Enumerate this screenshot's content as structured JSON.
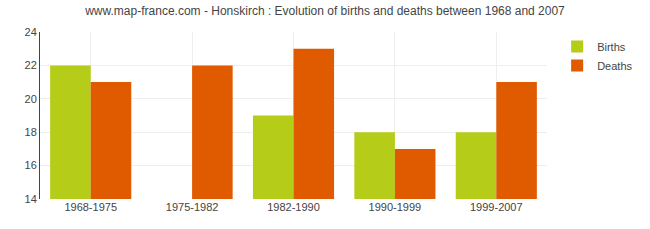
{
  "chart_data": {
    "type": "bar",
    "title": "www.map-france.com - Honskirch : Evolution of births and deaths between 1968 and 2007",
    "categories": [
      "1968-1975",
      "1975-1982",
      "1982-1990",
      "1990-1999",
      "1999-2007"
    ],
    "series": [
      {
        "name": "Births",
        "color": "#b5cc18",
        "values": [
          22,
          14,
          19,
          18,
          18
        ]
      },
      {
        "name": "Deaths",
        "color": "#e05a00",
        "values": [
          21,
          22,
          23,
          17,
          21
        ]
      }
    ],
    "ylim": [
      14,
      24
    ],
    "yticks": [
      14,
      16,
      18,
      20,
      22,
      24
    ],
    "grid": true,
    "legend": "upper right"
  }
}
